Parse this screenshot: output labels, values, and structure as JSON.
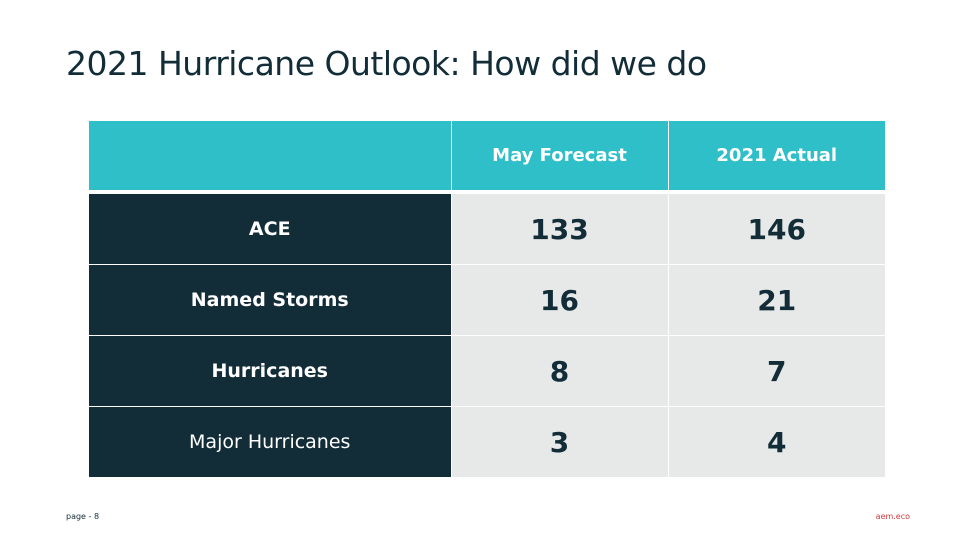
{
  "slide": {
    "title": "2021 Hurricane Outlook: How did we do"
  },
  "table": {
    "corner": "",
    "columns": [
      "May Forecast",
      "2021 Actual"
    ],
    "rows": [
      {
        "label": "ACE",
        "forecast": "133",
        "actual": "146"
      },
      {
        "label": "Named Storms",
        "forecast": "16",
        "actual": "21"
      },
      {
        "label": "Hurricanes",
        "forecast": "8",
        "actual": "7"
      },
      {
        "label": "Major Hurricanes",
        "forecast": "3",
        "actual": "4"
      }
    ]
  },
  "footer": {
    "page": "page - 8",
    "brand": "aem.eco"
  },
  "colors": {
    "header_teal": "#2ebfc8",
    "label_navy": "#122d38",
    "cell_gray": "#e7e8e8",
    "brand_red": "#d9383a"
  }
}
